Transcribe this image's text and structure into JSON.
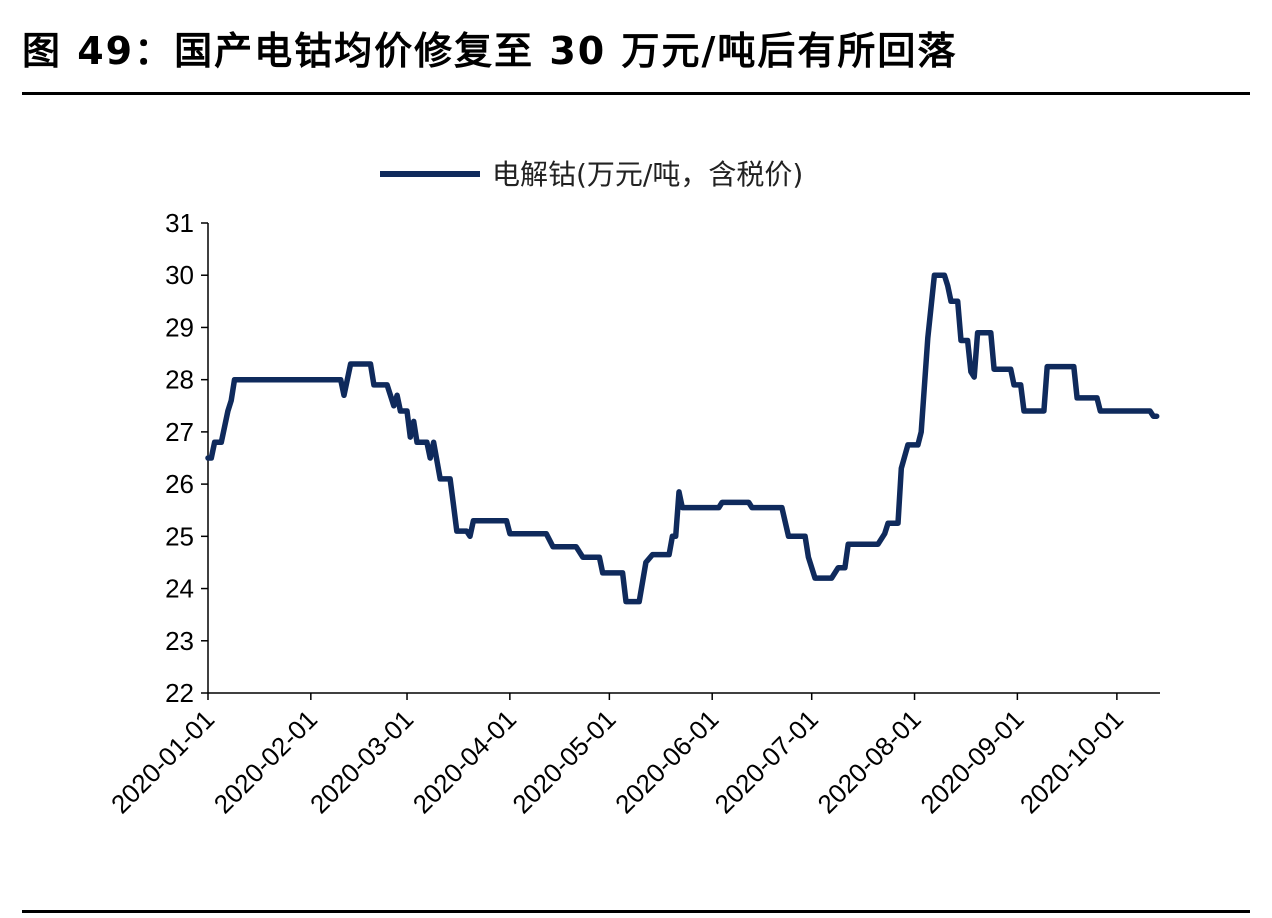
{
  "title": "图 49：国产电钴均价修复至 30 万元/吨后有所回落",
  "chart_data": {
    "type": "line",
    "legend_position": "top",
    "ylim": [
      22,
      31
    ],
    "y_ticks": [
      22,
      23,
      24,
      25,
      26,
      27,
      28,
      29,
      30,
      31
    ],
    "x_range": [
      "2020-01-01",
      "2020-10-14"
    ],
    "x_ticks": [
      "2020-01-01",
      "2020-02-01",
      "2020-03-01",
      "2020-04-01",
      "2020-05-01",
      "2020-06-01",
      "2020-07-01",
      "2020-08-01",
      "2020-09-01",
      "2020-10-01"
    ],
    "color": "#0f2a5c",
    "series": [
      {
        "name": "电解钴(万元/吨，含税价)",
        "points": [
          [
            "2020-01-01",
            26.5
          ],
          [
            "2020-01-02",
            26.5
          ],
          [
            "2020-01-03",
            26.8
          ],
          [
            "2020-01-05",
            26.8
          ],
          [
            "2020-01-06",
            27.1
          ],
          [
            "2020-01-07",
            27.4
          ],
          [
            "2020-01-08",
            27.6
          ],
          [
            "2020-01-09",
            28.0
          ],
          [
            "2020-02-10",
            28.0
          ],
          [
            "2020-02-11",
            27.7
          ],
          [
            "2020-02-12",
            28.0
          ],
          [
            "2020-02-13",
            28.3
          ],
          [
            "2020-02-19",
            28.3
          ],
          [
            "2020-02-20",
            27.9
          ],
          [
            "2020-02-24",
            27.9
          ],
          [
            "2020-02-26",
            27.5
          ],
          [
            "2020-02-27",
            27.7
          ],
          [
            "2020-02-28",
            27.4
          ],
          [
            "2020-03-01",
            27.4
          ],
          [
            "2020-03-02",
            26.9
          ],
          [
            "2020-03-03",
            27.2
          ],
          [
            "2020-03-04",
            26.8
          ],
          [
            "2020-03-07",
            26.8
          ],
          [
            "2020-03-08",
            26.5
          ],
          [
            "2020-03-09",
            26.8
          ],
          [
            "2020-03-11",
            26.1
          ],
          [
            "2020-03-14",
            26.1
          ],
          [
            "2020-03-15",
            25.6
          ],
          [
            "2020-03-16",
            25.1
          ],
          [
            "2020-03-19",
            25.1
          ],
          [
            "2020-03-20",
            25.0
          ],
          [
            "2020-03-21",
            25.3
          ],
          [
            "2020-03-31",
            25.3
          ],
          [
            "2020-04-01",
            25.05
          ],
          [
            "2020-04-12",
            25.05
          ],
          [
            "2020-04-14",
            24.8
          ],
          [
            "2020-04-21",
            24.8
          ],
          [
            "2020-04-23",
            24.6
          ],
          [
            "2020-04-28",
            24.6
          ],
          [
            "2020-04-29",
            24.3
          ],
          [
            "2020-05-05",
            24.3
          ],
          [
            "2020-05-06",
            23.75
          ],
          [
            "2020-05-10",
            23.75
          ],
          [
            "2020-05-12",
            24.5
          ],
          [
            "2020-05-14",
            24.65
          ],
          [
            "2020-05-19",
            24.65
          ],
          [
            "2020-05-20",
            25.0
          ],
          [
            "2020-05-21",
            25.0
          ],
          [
            "2020-05-22",
            25.85
          ],
          [
            "2020-05-23",
            25.55
          ],
          [
            "2020-06-03",
            25.55
          ],
          [
            "2020-06-04",
            25.65
          ],
          [
            "2020-06-12",
            25.65
          ],
          [
            "2020-06-13",
            25.55
          ],
          [
            "2020-06-22",
            25.55
          ],
          [
            "2020-06-24",
            25.0
          ],
          [
            "2020-06-29",
            25.0
          ],
          [
            "2020-06-30",
            24.6
          ],
          [
            "2020-07-02",
            24.2
          ],
          [
            "2020-07-07",
            24.2
          ],
          [
            "2020-07-09",
            24.4
          ],
          [
            "2020-07-11",
            24.4
          ],
          [
            "2020-07-12",
            24.85
          ],
          [
            "2020-07-21",
            24.85
          ],
          [
            "2020-07-23",
            25.05
          ],
          [
            "2020-07-24",
            25.25
          ],
          [
            "2020-07-27",
            25.25
          ],
          [
            "2020-07-28",
            26.3
          ],
          [
            "2020-07-30",
            26.75
          ],
          [
            "2020-08-02",
            26.75
          ],
          [
            "2020-08-03",
            27.0
          ],
          [
            "2020-08-05",
            28.8
          ],
          [
            "2020-08-07",
            30.0
          ],
          [
            "2020-08-10",
            30.0
          ],
          [
            "2020-08-11",
            29.8
          ],
          [
            "2020-08-12",
            29.5
          ],
          [
            "2020-08-14",
            29.5
          ],
          [
            "2020-08-15",
            28.75
          ],
          [
            "2020-08-17",
            28.75
          ],
          [
            "2020-08-18",
            28.15
          ],
          [
            "2020-08-19",
            28.05
          ],
          [
            "2020-08-20",
            28.9
          ],
          [
            "2020-08-24",
            28.9
          ],
          [
            "2020-08-25",
            28.2
          ],
          [
            "2020-08-30",
            28.2
          ],
          [
            "2020-08-31",
            27.9
          ],
          [
            "2020-09-02",
            27.9
          ],
          [
            "2020-09-03",
            27.4
          ],
          [
            "2020-09-09",
            27.4
          ],
          [
            "2020-09-10",
            28.25
          ],
          [
            "2020-09-18",
            28.25
          ],
          [
            "2020-09-19",
            27.65
          ],
          [
            "2020-09-25",
            27.65
          ],
          [
            "2020-09-26",
            27.4
          ],
          [
            "2020-10-11",
            27.4
          ],
          [
            "2020-10-12",
            27.3
          ],
          [
            "2020-10-13",
            27.3
          ]
        ]
      }
    ]
  }
}
